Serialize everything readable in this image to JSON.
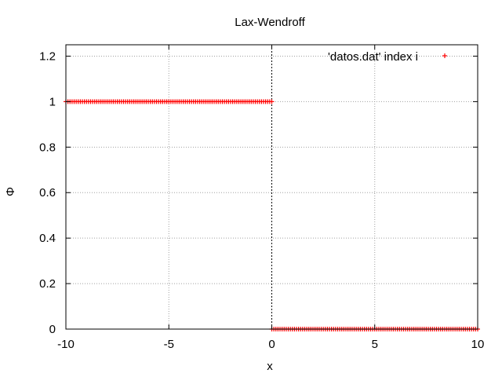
{
  "chart_data": {
    "type": "scatter",
    "title": "Lax-Wendroff",
    "xlabel": "x",
    "ylabel": "Φ",
    "xlim": [
      -10,
      10
    ],
    "ylim": [
      0,
      1.25
    ],
    "x_ticks": [
      -10,
      -5,
      0,
      5,
      10
    ],
    "x_tick_labels": [
      "-10",
      "-5",
      "0",
      "5",
      "10"
    ],
    "y_ticks": [
      0,
      0.2,
      0.4,
      0.6,
      0.8,
      1,
      1.2
    ],
    "y_tick_labels": [
      "0",
      "0.2",
      "0.4",
      "0.6",
      "0.8",
      "1",
      "1.2"
    ],
    "grid": true,
    "zero_axis_x": 0,
    "legend": {
      "position": "top-right",
      "entries": [
        "'datos.dat' index i"
      ]
    },
    "series": [
      {
        "name": "'datos.dat' index i",
        "marker": "+",
        "color": "#ff0000",
        "segments": [
          {
            "x_from": -10,
            "x_to": 0,
            "y": 1,
            "step": 0.1
          },
          {
            "x_from": 0,
            "x_to": 10,
            "y": 0,
            "step": 0.1
          }
        ]
      }
    ]
  }
}
